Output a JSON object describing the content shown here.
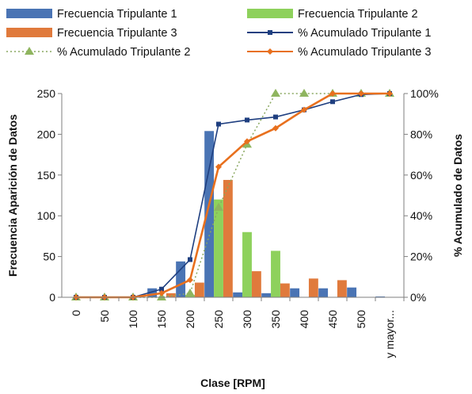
{
  "chart_data": {
    "type": "bar",
    "title": "",
    "xlabel": "Clase [RPM]",
    "ylabel": "Frecuencia Aparición de Datos",
    "y2label": "% Acumulado de Datos",
    "categories": [
      "0",
      "50",
      "100",
      "150",
      "200",
      "250",
      "300",
      "350",
      "400",
      "450",
      "500",
      "y mayor..."
    ],
    "ylim": [
      0,
      250
    ],
    "yticks": [
      "0",
      "50",
      "100",
      "150",
      "200",
      "250"
    ],
    "y2lim": [
      0,
      100
    ],
    "y2ticks": [
      "0%",
      "20%",
      "40%",
      "60%",
      "80%",
      "100%"
    ],
    "legend_position": "top",
    "series": [
      {
        "name": "Frecuencia Tripulante 1",
        "kind": "bar",
        "axis": "left",
        "color": "#4a74b4",
        "values": [
          0,
          0,
          0,
          11,
          44,
          204,
          6,
          5,
          11,
          11,
          12,
          1
        ]
      },
      {
        "name": "Frecuencia Tripulante 2",
        "kind": "bar",
        "axis": "left",
        "color": "#8ed15c",
        "values": [
          0,
          0,
          0,
          0,
          3,
          120,
          80,
          57,
          0,
          0,
          0,
          0
        ]
      },
      {
        "name": "Frecuencia Tripulante 3",
        "kind": "bar",
        "axis": "left",
        "color": "#e07a3c",
        "values": [
          0,
          0,
          0,
          5,
          18,
          144,
          32,
          17,
          23,
          21,
          0,
          0
        ]
      },
      {
        "name": "% Acumulado Tripulante 1",
        "kind": "line",
        "axis": "right",
        "color": "#1f3f80",
        "marker": "square",
        "values": [
          0,
          0,
          0,
          4,
          18.5,
          85,
          87,
          88.5,
          92,
          96,
          99.5,
          100
        ]
      },
      {
        "name": "% Acumulado Tripulante 2",
        "kind": "line",
        "axis": "right",
        "color": "#8aa860",
        "marker": "triangle",
        "dash": "dotted",
        "values": [
          0,
          0,
          0,
          0,
          2,
          44,
          75,
          100,
          100,
          100,
          100,
          100
        ]
      },
      {
        "name": "% Acumulado Tripulante 3",
        "kind": "line",
        "axis": "right",
        "color": "#e8701e",
        "marker": "diamond",
        "values": [
          0,
          0,
          0,
          2,
          8.5,
          64,
          76.5,
          83,
          92,
          100,
          100,
          100
        ]
      }
    ]
  }
}
